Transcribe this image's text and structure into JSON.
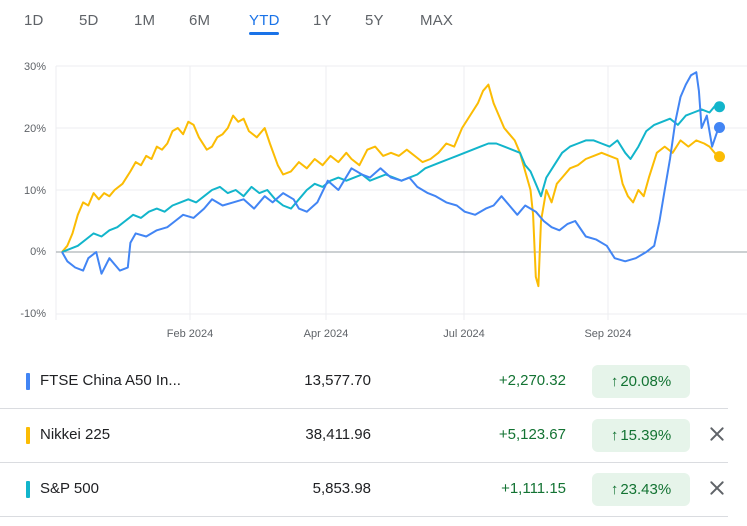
{
  "range_tabs": [
    {
      "label": "1D"
    },
    {
      "label": "5D"
    },
    {
      "label": "1M"
    },
    {
      "label": "6M"
    },
    {
      "label": "YTD"
    },
    {
      "label": "1Y"
    },
    {
      "label": "5Y"
    },
    {
      "label": "MAX"
    }
  ],
  "active_tab": "YTD",
  "chart_data": {
    "type": "line",
    "x_axis_ticks": [
      "Feb 2024",
      "Apr 2024",
      "Jul 2024",
      "Sep 2024"
    ],
    "y_axis_ticks": [
      "30%",
      "20%",
      "10%",
      "0%",
      "-10%"
    ],
    "ylim": [
      -10,
      30
    ],
    "grid": true,
    "baseline": 0,
    "series": [
      {
        "name": "FTSE China A50 In...",
        "color": "#4285f4",
        "points": [
          [
            0,
            0
          ],
          [
            2,
            -1.5
          ],
          [
            5,
            -2.5
          ],
          [
            8,
            -3
          ],
          [
            10,
            -1
          ],
          [
            13,
            0
          ],
          [
            15,
            -3.5
          ],
          [
            18,
            -1
          ],
          [
            20,
            -2
          ],
          [
            22,
            -3
          ],
          [
            25,
            -2.5
          ],
          [
            26,
            1.5
          ],
          [
            28,
            3
          ],
          [
            32,
            2.5
          ],
          [
            36,
            3.5
          ],
          [
            40,
            4
          ],
          [
            43,
            5
          ],
          [
            46,
            6
          ],
          [
            50,
            5.5
          ],
          [
            54,
            7
          ],
          [
            57,
            8.5
          ],
          [
            61,
            7.5
          ],
          [
            65,
            8
          ],
          [
            69,
            8.5
          ],
          [
            73,
            7
          ],
          [
            77,
            9
          ],
          [
            80,
            8
          ],
          [
            84,
            9.5
          ],
          [
            88,
            8.5
          ],
          [
            90,
            7
          ],
          [
            93,
            6.5
          ],
          [
            97,
            8
          ],
          [
            101,
            11.5
          ],
          [
            105,
            10
          ],
          [
            110,
            13.5
          ],
          [
            114,
            12.5
          ],
          [
            117,
            12
          ],
          [
            121,
            13.5
          ],
          [
            125,
            12
          ],
          [
            129,
            11.5
          ],
          [
            132,
            12
          ],
          [
            135,
            10.5
          ],
          [
            139,
            9.5
          ],
          [
            142,
            9
          ],
          [
            146,
            8
          ],
          [
            150,
            7.5
          ],
          [
            153,
            6.5
          ],
          [
            157,
            6
          ],
          [
            161,
            7
          ],
          [
            164,
            7.5
          ],
          [
            167,
            9
          ],
          [
            170,
            7.5
          ],
          [
            173,
            6
          ],
          [
            176,
            7.5
          ],
          [
            180,
            6.5
          ],
          [
            183,
            5
          ],
          [
            186,
            4
          ],
          [
            189,
            3.5
          ],
          [
            192,
            4.5
          ],
          [
            195,
            5
          ],
          [
            199,
            2.5
          ],
          [
            203,
            2
          ],
          [
            207,
            1
          ],
          [
            210,
            -1
          ],
          [
            214,
            -1.5
          ],
          [
            218,
            -1
          ],
          [
            222,
            0
          ],
          [
            225,
            1
          ],
          [
            227,
            5
          ],
          [
            229,
            10
          ],
          [
            231,
            15
          ],
          [
            233,
            21
          ],
          [
            235,
            25
          ],
          [
            237,
            27
          ],
          [
            239,
            28.5
          ],
          [
            241,
            29
          ],
          [
            242,
            26
          ],
          [
            243,
            20
          ],
          [
            245,
            22
          ],
          [
            247,
            17
          ],
          [
            249,
            19.5
          ],
          [
            250,
            20.08
          ]
        ]
      },
      {
        "name": "Nikkei 225",
        "color": "#fbbc04",
        "points": [
          [
            0,
            0
          ],
          [
            2,
            1
          ],
          [
            4,
            3
          ],
          [
            6,
            6
          ],
          [
            8,
            8
          ],
          [
            10,
            7.5
          ],
          [
            12,
            9.5
          ],
          [
            14,
            8.5
          ],
          [
            16,
            9.5
          ],
          [
            18,
            9
          ],
          [
            20,
            10
          ],
          [
            23,
            11
          ],
          [
            26,
            13
          ],
          [
            28,
            14.5
          ],
          [
            30,
            14
          ],
          [
            32,
            15.5
          ],
          [
            34,
            15
          ],
          [
            36,
            17
          ],
          [
            38,
            16.5
          ],
          [
            40,
            17.5
          ],
          [
            42,
            19.5
          ],
          [
            44,
            20
          ],
          [
            46,
            19
          ],
          [
            48,
            21
          ],
          [
            50,
            20.5
          ],
          [
            52,
            18.5
          ],
          [
            55,
            16.5
          ],
          [
            57,
            17
          ],
          [
            59,
            18.5
          ],
          [
            61,
            19
          ],
          [
            63,
            20
          ],
          [
            65,
            22
          ],
          [
            67,
            21
          ],
          [
            69,
            21.5
          ],
          [
            71,
            19.5
          ],
          [
            74,
            18.5
          ],
          [
            77,
            20
          ],
          [
            79,
            17.5
          ],
          [
            82,
            14
          ],
          [
            84,
            12.5
          ],
          [
            87,
            13
          ],
          [
            90,
            14.5
          ],
          [
            93,
            13.5
          ],
          [
            96,
            15
          ],
          [
            99,
            14
          ],
          [
            102,
            15.5
          ],
          [
            105,
            14.5
          ],
          [
            108,
            16
          ],
          [
            110,
            15
          ],
          [
            113,
            14
          ],
          [
            116,
            16.5
          ],
          [
            119,
            17
          ],
          [
            122,
            15.5
          ],
          [
            125,
            16
          ],
          [
            128,
            15.5
          ],
          [
            131,
            16.5
          ],
          [
            134,
            15.5
          ],
          [
            137,
            14.5
          ],
          [
            140,
            15
          ],
          [
            143,
            16
          ],
          [
            146,
            17.5
          ],
          [
            149,
            17
          ],
          [
            152,
            20
          ],
          [
            155,
            22
          ],
          [
            158,
            24
          ],
          [
            160,
            26
          ],
          [
            162,
            27
          ],
          [
            164,
            24
          ],
          [
            166,
            22
          ],
          [
            168,
            20
          ],
          [
            170,
            19
          ],
          [
            172,
            18
          ],
          [
            174,
            16
          ],
          [
            176,
            13
          ],
          [
            178,
            10
          ],
          [
            179,
            6
          ],
          [
            180,
            -4
          ],
          [
            181,
            -5.5
          ],
          [
            182,
            5
          ],
          [
            184,
            10
          ],
          [
            186,
            8
          ],
          [
            188,
            11
          ],
          [
            190,
            12
          ],
          [
            193,
            13.5
          ],
          [
            196,
            14
          ],
          [
            199,
            15
          ],
          [
            202,
            15.5
          ],
          [
            205,
            16
          ],
          [
            208,
            15.5
          ],
          [
            211,
            15
          ],
          [
            213,
            11
          ],
          [
            215,
            9
          ],
          [
            217,
            8
          ],
          [
            219,
            10
          ],
          [
            221,
            9
          ],
          [
            223,
            12
          ],
          [
            226,
            16
          ],
          [
            229,
            17
          ],
          [
            232,
            16
          ],
          [
            235,
            18
          ],
          [
            238,
            17
          ],
          [
            241,
            18
          ],
          [
            244,
            17.5
          ],
          [
            246,
            17
          ],
          [
            248,
            16
          ],
          [
            250,
            15.39
          ]
        ]
      },
      {
        "name": "S&P 500",
        "color": "#12b5cb",
        "points": [
          [
            0,
            0
          ],
          [
            3,
            0.5
          ],
          [
            6,
            1
          ],
          [
            9,
            2
          ],
          [
            12,
            3
          ],
          [
            15,
            2.5
          ],
          [
            18,
            3.5
          ],
          [
            21,
            4
          ],
          [
            24,
            5
          ],
          [
            27,
            6
          ],
          [
            30,
            5.5
          ],
          [
            33,
            6.5
          ],
          [
            36,
            7
          ],
          [
            39,
            6.5
          ],
          [
            42,
            7.5
          ],
          [
            45,
            8
          ],
          [
            48,
            8.5
          ],
          [
            51,
            8
          ],
          [
            54,
            9
          ],
          [
            57,
            10
          ],
          [
            60,
            10.5
          ],
          [
            63,
            9.5
          ],
          [
            66,
            10
          ],
          [
            69,
            9
          ],
          [
            72,
            10.5
          ],
          [
            75,
            9.5
          ],
          [
            78,
            10
          ],
          [
            81,
            8.5
          ],
          [
            84,
            7.5
          ],
          [
            87,
            7
          ],
          [
            90,
            8.5
          ],
          [
            93,
            10
          ],
          [
            96,
            11
          ],
          [
            99,
            10.5
          ],
          [
            102,
            11.5
          ],
          [
            105,
            12
          ],
          [
            108,
            11.5
          ],
          [
            111,
            12
          ],
          [
            114,
            12.5
          ],
          [
            117,
            11.5
          ],
          [
            120,
            12
          ],
          [
            123,
            12.5
          ],
          [
            126,
            12
          ],
          [
            129,
            11.5
          ],
          [
            132,
            12
          ],
          [
            135,
            12.5
          ],
          [
            138,
            13.5
          ],
          [
            141,
            14
          ],
          [
            144,
            14.5
          ],
          [
            147,
            15
          ],
          [
            150,
            15.5
          ],
          [
            153,
            16
          ],
          [
            156,
            16.5
          ],
          [
            159,
            17
          ],
          [
            162,
            17.5
          ],
          [
            165,
            17.5
          ],
          [
            168,
            17
          ],
          [
            171,
            16.5
          ],
          [
            174,
            16
          ],
          [
            176,
            14
          ],
          [
            178,
            13
          ],
          [
            180,
            11
          ],
          [
            182,
            9
          ],
          [
            184,
            12
          ],
          [
            187,
            14
          ],
          [
            190,
            16
          ],
          [
            193,
            17
          ],
          [
            196,
            17.5
          ],
          [
            199,
            18
          ],
          [
            202,
            18
          ],
          [
            205,
            17.5
          ],
          [
            208,
            17
          ],
          [
            211,
            18
          ],
          [
            214,
            16
          ],
          [
            216,
            15
          ],
          [
            219,
            17
          ],
          [
            222,
            19.5
          ],
          [
            225,
            20.5
          ],
          [
            228,
            21
          ],
          [
            231,
            21.5
          ],
          [
            234,
            20.5
          ],
          [
            237,
            22
          ],
          [
            240,
            22.5
          ],
          [
            243,
            23
          ],
          [
            246,
            22.5
          ],
          [
            248,
            23.5
          ],
          [
            250,
            23.43
          ]
        ]
      }
    ]
  },
  "rows": [
    {
      "name": "FTSE China A50 In...",
      "price": "13,577.70",
      "change": "+2,270.32",
      "pct": "20.08%",
      "color": "#4285f4",
      "removable": false
    },
    {
      "name": "Nikkei 225",
      "price": "38,411.96",
      "change": "+5,123.67",
      "pct": "15.39%",
      "color": "#fbbc04",
      "removable": true
    },
    {
      "name": "S&P 500",
      "price": "5,853.98",
      "change": "+1,111.15",
      "pct": "23.43%",
      "color": "#12b5cb",
      "removable": true
    }
  ]
}
